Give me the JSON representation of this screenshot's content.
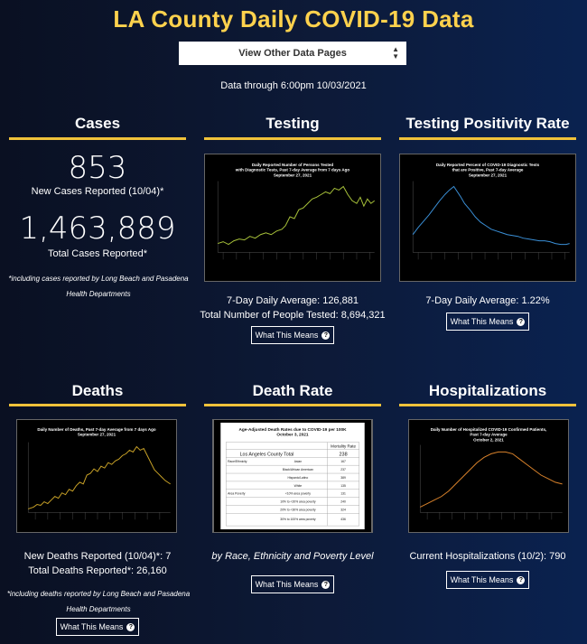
{
  "page_title": "LA County Daily COVID-19 Data",
  "nav_select": {
    "label": "View Other Data Pages"
  },
  "data_through": "Data through 6:00pm 10/03/2021",
  "cases": {
    "heading": "Cases",
    "new_count": "853",
    "new_label": "New Cases Reported (10/04)*",
    "total_count": "1,463,889",
    "total_label": "Total Cases Reported*",
    "note_line1": "*including cases reported by Long Beach and Pasadena",
    "note_line2": "Health Departments"
  },
  "testing": {
    "heading": "Testing",
    "chart_title_1": "Daily Reported Number of Persons Tested",
    "chart_title_2": "with Diagnostic Tests, Past 7-day Average from 7 days Ago",
    "chart_title_3": "September 27, 2021",
    "avg": "7-Day Daily Average: 126,881",
    "total": "Total Number of People Tested: 8,694,321",
    "button": "What This Means"
  },
  "positivity": {
    "heading": "Testing Positivity Rate",
    "chart_title_1": "Daily Reported Percent of COVID-19 Diagnostic Tests",
    "chart_title_2": "that are Positive, Past 7-day Average",
    "chart_title_3": "September 27, 2021",
    "avg": "7-Day Daily Average: 1.22%",
    "button": "What This Means"
  },
  "deaths": {
    "heading": "Deaths",
    "chart_title_1": "Daily Number of Deaths, Past 7-day Average from 7 days Ago",
    "chart_title_2": "September 27, 2021",
    "new": "New Deaths Reported (10/04)*: 7",
    "total": "Total Deaths Reported*: 26,160",
    "note_line1": "*including deaths reported by Long Beach and Pasadena",
    "note_line2": "Health Departments",
    "button": "What This Means"
  },
  "death_rate": {
    "heading": "Death Rate",
    "table_title_1": "Age-Adjusted Death Rates due to COVID-19 per 100K",
    "table_title_2": "October 3, 2021",
    "col_header": "Mortality Rate",
    "rows": [
      {
        "group": "",
        "label": "Los Angeles County Total",
        "value": "238"
      },
      {
        "group": "Race/Ethnicity",
        "label": "Asian",
        "value": "167"
      },
      {
        "group": "",
        "label": "Black/African American",
        "value": "237"
      },
      {
        "group": "",
        "label": "Hispanic/Latino",
        "value": "389"
      },
      {
        "group": "",
        "label": "White",
        "value": "135"
      },
      {
        "group": "Area Poverty",
        "label": "<10% area poverty",
        "value": "131"
      },
      {
        "group": "",
        "label": "10% to <20% area poverty",
        "value": "240"
      },
      {
        "group": "",
        "label": "20% to <30% area poverty",
        "value": "324"
      },
      {
        "group": "",
        "label": "30% to 100% area poverty",
        "value": "436"
      }
    ],
    "caption": "by Race, Ethnicity and Poverty Level",
    "button": "What This Means"
  },
  "hospitalizations": {
    "heading": "Hospitalizations",
    "chart_title_1": "Daily Number of Hospitalized COVID-19 Confirmed Patients,",
    "chart_title_2": "Past 7-day Average",
    "chart_title_3": "October 2, 2021",
    "current": "Current Hospitalizations (10/2): 790",
    "button": "What This Means"
  },
  "colors": {
    "accent": "#ffd24d",
    "rule": "#f0c23a",
    "testing_line": "#a8c23a",
    "positivity_line": "#3a8fd6",
    "deaths_line": "#c9a227",
    "hosp_line": "#d9822b"
  }
}
